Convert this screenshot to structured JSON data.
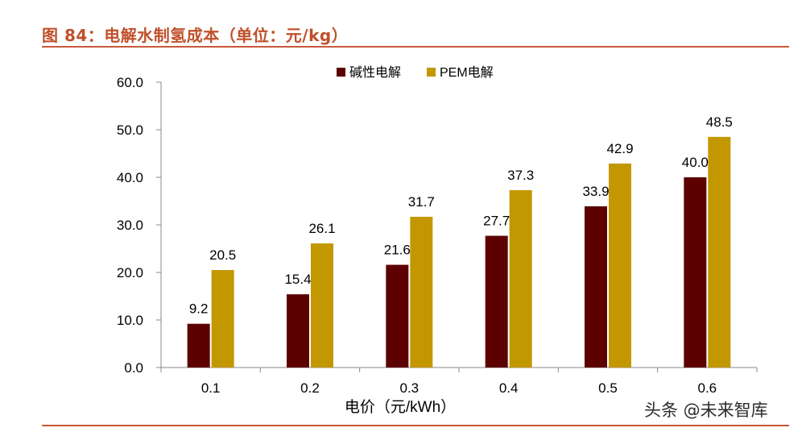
{
  "title": "图 84：电解水制氢成本（单位：元/kg）",
  "watermark": "头条 @未来智库",
  "colors": {
    "accent": "#c0502a",
    "series1": "#5c0000",
    "series2": "#c39700"
  },
  "chart_data": {
    "type": "bar",
    "title": "",
    "xlabel": "电价（元/kWh）",
    "ylabel": "",
    "categories": [
      "0.1",
      "0.2",
      "0.3",
      "0.4",
      "0.5",
      "0.6"
    ],
    "series": [
      {
        "name": "碱性电解",
        "values": [
          9.2,
          15.4,
          21.6,
          27.7,
          33.9,
          40.0
        ],
        "labels": [
          "9.2",
          "15.4",
          "21.6",
          "27.7",
          "33.9",
          "40.0"
        ]
      },
      {
        "name": "PEM电解",
        "values": [
          20.5,
          26.1,
          31.7,
          37.3,
          42.9,
          48.5
        ],
        "labels": [
          "20.5",
          "26.1",
          "31.7",
          "37.3",
          "42.9",
          "48.5"
        ]
      }
    ],
    "ylim": [
      0,
      60
    ],
    "yticks": [
      "0.0",
      "10.0",
      "20.0",
      "30.0",
      "40.0",
      "50.0",
      "60.0"
    ],
    "legend": "top-center",
    "grid": false
  }
}
